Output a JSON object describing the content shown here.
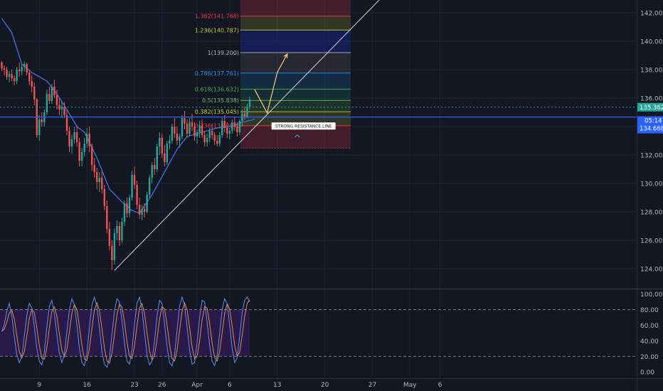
{
  "chart_data": {
    "type": "candlestick",
    "instrument_note": "",
    "price_axis": {
      "ticks": [
        "142.000",
        "140.000",
        "138.000",
        "136.000",
        "134.000",
        "132.000",
        "130.000",
        "128.000",
        "126.000",
        "124.000"
      ],
      "tick_values": [
        142,
        140,
        138,
        136,
        134,
        132,
        130,
        128,
        126,
        124
      ],
      "range": [
        122.6,
        142.9
      ]
    },
    "date_axis": {
      "ticks": [
        "9",
        "16",
        "23",
        "26",
        "Apr",
        "6",
        "13",
        "20",
        "27",
        "May",
        "6"
      ],
      "tick_bar_index": [
        15,
        34,
        53,
        64,
        78,
        91,
        110,
        129,
        148,
        163,
        175
      ]
    },
    "price_tags": {
      "upper": {
        "text": "135.362",
        "value": 135.362,
        "color": "#26a69a"
      },
      "countdown": {
        "text": "05:14",
        "color": "#2962ff"
      },
      "lower": {
        "text": "134.668",
        "value": 134.668,
        "color": "#2962ff"
      }
    },
    "fibonacci": {
      "levels": [
        {
          "label": "1.382(141.768)",
          "value": 141.768,
          "color": "#f23645"
        },
        {
          "label": "1.236(140.787)",
          "value": 140.787,
          "color": "#c0ca33"
        },
        {
          "label": "1(139.200)",
          "value": 139.2,
          "color": "#b2b5be"
        },
        {
          "label": "0.786(137.761)",
          "value": 137.761,
          "color": "#2196f3"
        },
        {
          "label": "0.618(136.632)",
          "value": 136.632,
          "color": "#4caf50"
        },
        {
          "label": "0.5(135.838)",
          "value": 135.838,
          "color": "#66bb6a"
        },
        {
          "label": "0.382(135.045)",
          "value": 135.045,
          "color": "#c0ca33"
        },
        {
          "label": "0.236(134.063)",
          "value": 134.063,
          "color": "#f23645"
        }
      ],
      "zone_top": 142.9,
      "zone_bottom": 132.48
    },
    "horizontal_line": {
      "value": 134.668,
      "color": "#2962ff"
    },
    "trendline": {
      "from": {
        "bar": 45,
        "price": 123.88
      },
      "to": {
        "bar": 151,
        "price": 142.95
      },
      "color": "#d1d4dc"
    },
    "annotation": {
      "text": "STRONG RESISTANCE LINE",
      "bar": 108,
      "price": 134.04
    },
    "projection_arrow": {
      "points": [
        [
          101,
          136.6
        ],
        [
          106,
          134.95
        ],
        [
          110,
          137.8
        ],
        [
          114,
          139.1
        ]
      ],
      "color": "#ffcc80"
    },
    "lower_arrow_mark": {
      "bar": 118,
      "price": 133.4,
      "color": "#2196f3"
    },
    "moving_average": {
      "color": "#3f6bd6",
      "points": [
        [
          0,
          141.6
        ],
        [
          4,
          140.6
        ],
        [
          8,
          138.4
        ],
        [
          12,
          137.8
        ],
        [
          18,
          137.2
        ],
        [
          22,
          136.3
        ],
        [
          26,
          135.2
        ],
        [
          30,
          134.0
        ],
        [
          33,
          133.6
        ],
        [
          38,
          131.8
        ],
        [
          43,
          129.6
        ],
        [
          48,
          128.7
        ],
        [
          52,
          128.1
        ],
        [
          55,
          127.9
        ],
        [
          60,
          129.2
        ],
        [
          65,
          130.8
        ],
        [
          70,
          132.4
        ],
        [
          74,
          133.3
        ],
        [
          80,
          133.6
        ],
        [
          86,
          133.9
        ],
        [
          92,
          134.0
        ],
        [
          96,
          134.3
        ],
        [
          101,
          134.5
        ]
      ]
    },
    "candles": [
      [
        138.5,
        138.6,
        137.9,
        138.1
      ],
      [
        138.1,
        138.3,
        137.6,
        138.0
      ],
      [
        138.0,
        138.2,
        137.3,
        137.5
      ],
      [
        137.5,
        137.9,
        137.1,
        137.7
      ],
      [
        137.7,
        138.0,
        137.2,
        137.4
      ],
      [
        137.4,
        137.6,
        136.9,
        137.2
      ],
      [
        137.2,
        138.2,
        137.0,
        138.0
      ],
      [
        138.0,
        138.5,
        137.5,
        137.9
      ],
      [
        137.9,
        138.4,
        137.6,
        138.2
      ],
      [
        138.2,
        138.6,
        137.9,
        138.4
      ],
      [
        138.4,
        138.5,
        137.6,
        137.8
      ],
      [
        137.8,
        138.0,
        136.9,
        137.2
      ],
      [
        137.2,
        137.6,
        136.4,
        136.8
      ],
      [
        136.8,
        137.1,
        135.5,
        135.9
      ],
      [
        135.9,
        136.0,
        133.2,
        133.4
      ],
      [
        133.4,
        134.8,
        133.0,
        134.5
      ],
      [
        134.5,
        135.0,
        134.0,
        134.3
      ],
      [
        134.3,
        135.2,
        134.0,
        135.0
      ],
      [
        135.0,
        136.6,
        134.8,
        136.3
      ],
      [
        136.3,
        136.8,
        135.6,
        135.8
      ],
      [
        135.8,
        137.0,
        135.6,
        136.8
      ],
      [
        136.8,
        137.3,
        136.0,
        136.2
      ],
      [
        136.2,
        136.6,
        135.2,
        135.5
      ],
      [
        135.5,
        136.0,
        134.8,
        135.2
      ],
      [
        135.2,
        135.8,
        134.6,
        135.4
      ],
      [
        135.4,
        135.7,
        134.6,
        134.8
      ],
      [
        134.8,
        135.2,
        133.4,
        133.7
      ],
      [
        133.7,
        134.0,
        132.2,
        132.6
      ],
      [
        132.6,
        133.4,
        132.1,
        133.1
      ],
      [
        133.1,
        134.0,
        132.8,
        133.6
      ],
      [
        133.6,
        134.1,
        132.6,
        132.9
      ],
      [
        132.9,
        133.2,
        131.2,
        131.6
      ],
      [
        131.6,
        132.5,
        131.2,
        132.2
      ],
      [
        132.2,
        133.2,
        131.9,
        132.8
      ],
      [
        132.8,
        133.9,
        132.5,
        133.5
      ],
      [
        133.5,
        134.0,
        132.2,
        132.6
      ],
      [
        132.6,
        132.8,
        130.9,
        131.3
      ],
      [
        131.3,
        131.8,
        130.4,
        130.8
      ],
      [
        130.8,
        131.1,
        129.6,
        130.1
      ],
      [
        130.1,
        130.8,
        129.4,
        130.4
      ],
      [
        130.4,
        130.9,
        129.3,
        129.6
      ],
      [
        129.6,
        129.9,
        128.1,
        128.4
      ],
      [
        128.4,
        128.8,
        126.5,
        126.8
      ],
      [
        126.8,
        127.3,
        125.3,
        125.6
      ],
      [
        125.6,
        126.0,
        123.9,
        124.6
      ],
      [
        124.6,
        126.8,
        124.3,
        126.5
      ],
      [
        126.5,
        127.4,
        126.0,
        127.0
      ],
      [
        127.0,
        127.3,
        125.6,
        126.0
      ],
      [
        126.0,
        127.6,
        125.8,
        127.3
      ],
      [
        127.3,
        128.8,
        127.0,
        128.6
      ],
      [
        128.6,
        129.0,
        127.6,
        127.9
      ],
      [
        127.9,
        129.2,
        127.6,
        129.0
      ],
      [
        129.0,
        130.9,
        128.8,
        130.6
      ],
      [
        130.6,
        131.2,
        129.6,
        129.9
      ],
      [
        129.9,
        130.2,
        128.2,
        128.5
      ],
      [
        128.5,
        129.0,
        127.5,
        127.8
      ],
      [
        127.8,
        128.5,
        127.4,
        128.2
      ],
      [
        128.2,
        128.6,
        127.6,
        128.0
      ],
      [
        128.0,
        129.4,
        127.9,
        129.2
      ],
      [
        129.2,
        130.6,
        129.0,
        130.4
      ],
      [
        130.4,
        131.5,
        130.0,
        131.3
      ],
      [
        131.3,
        131.8,
        130.6,
        131.0
      ],
      [
        131.0,
        132.8,
        130.8,
        132.6
      ],
      [
        132.6,
        133.6,
        132.0,
        133.2
      ],
      [
        133.2,
        133.5,
        131.8,
        132.1
      ],
      [
        132.1,
        132.7,
        131.2,
        131.5
      ],
      [
        131.5,
        133.0,
        131.3,
        132.8
      ],
      [
        132.8,
        133.4,
        132.4,
        133.0
      ],
      [
        133.0,
        134.2,
        132.8,
        134.0
      ],
      [
        134.0,
        134.6,
        133.2,
        133.5
      ],
      [
        133.5,
        134.0,
        132.7,
        133.0
      ],
      [
        133.0,
        133.5,
        132.5,
        133.3
      ],
      [
        133.3,
        134.8,
        133.1,
        134.6
      ],
      [
        134.6,
        135.1,
        133.8,
        134.2
      ],
      [
        134.2,
        134.5,
        133.2,
        133.5
      ],
      [
        133.5,
        134.6,
        133.3,
        134.3
      ],
      [
        134.3,
        134.9,
        133.7,
        134.0
      ],
      [
        134.0,
        134.3,
        133.0,
        133.3
      ],
      [
        133.3,
        133.8,
        132.8,
        133.6
      ],
      [
        133.6,
        134.4,
        133.2,
        134.1
      ],
      [
        134.1,
        134.5,
        133.2,
        133.4
      ],
      [
        133.4,
        133.7,
        132.6,
        132.9
      ],
      [
        132.9,
        133.5,
        132.6,
        133.2
      ],
      [
        133.2,
        133.9,
        132.9,
        133.7
      ],
      [
        133.7,
        134.2,
        133.1,
        133.4
      ],
      [
        133.4,
        133.6,
        132.7,
        133.0
      ],
      [
        133.0,
        133.4,
        132.6,
        132.8
      ],
      [
        132.8,
        133.6,
        132.6,
        133.4
      ],
      [
        133.4,
        134.6,
        133.2,
        134.4
      ],
      [
        134.4,
        134.8,
        133.6,
        133.9
      ],
      [
        133.9,
        134.3,
        133.2,
        133.5
      ],
      [
        133.5,
        133.9,
        133.1,
        133.7
      ],
      [
        133.7,
        134.5,
        133.5,
        134.3
      ],
      [
        134.3,
        134.7,
        133.7,
        134.0
      ],
      [
        134.0,
        134.3,
        133.3,
        133.6
      ],
      [
        133.6,
        134.5,
        133.4,
        134.4
      ],
      [
        134.4,
        135.2,
        134.0,
        134.9
      ],
      [
        134.9,
        135.4,
        134.5,
        134.7
      ],
      [
        134.7,
        135.6,
        134.6,
        135.4
      ],
      [
        135.4,
        136.1,
        135.2,
        135.9
      ]
    ],
    "oscillator": {
      "type": "stochastic",
      "ticks": [
        "100.00",
        "80.00",
        "60.00",
        "40.00",
        "20.00",
        "0.00"
      ],
      "tick_values": [
        100,
        80,
        60,
        40,
        20,
        0
      ],
      "range": [
        -8,
        106
      ],
      "bands": [
        20,
        80
      ],
      "band_fill": "#2b1b4d",
      "k_color": "#5b8def",
      "d_color": "#e0884a",
      "k": [
        52,
        61,
        78,
        88,
        72,
        45,
        22,
        12,
        20,
        46,
        72,
        88,
        82,
        58,
        30,
        14,
        9,
        26,
        58,
        84,
        92,
        75,
        48,
        24,
        12,
        22,
        52,
        80,
        94,
        86,
        60,
        30,
        12,
        8,
        24,
        58,
        86,
        96,
        84,
        56,
        26,
        10,
        6,
        18,
        48,
        78,
        94,
        90,
        66,
        36,
        14,
        10,
        28,
        62,
        88,
        96,
        80,
        50,
        22,
        9,
        14,
        40,
        72,
        92,
        88,
        62,
        32,
        12,
        8,
        22,
        54,
        84,
        96,
        86,
        58,
        28,
        10,
        12,
        38,
        70,
        92,
        90,
        64,
        34,
        14,
        8,
        20,
        50,
        80,
        94,
        88,
        60,
        30,
        12,
        18,
        46,
        76,
        92,
        96,
        90
      ]
    }
  }
}
